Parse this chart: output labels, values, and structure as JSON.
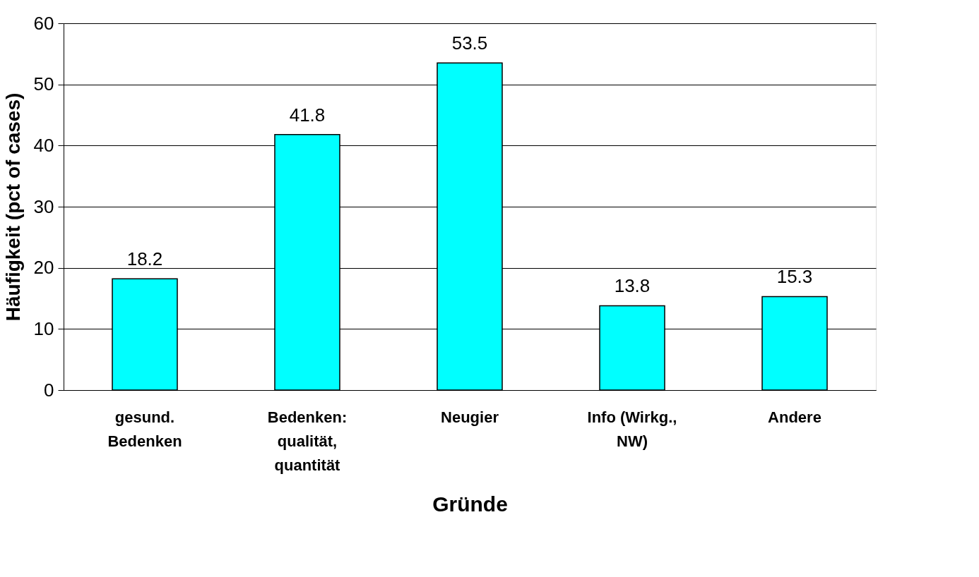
{
  "chart_data": {
    "type": "bar",
    "categories": [
      "gesund.\nBedenken",
      "Bedenken:\nqualität,\nquantität",
      "Neugier",
      "Info (Wirkg.,\nNW)",
      "Andere"
    ],
    "values": [
      18.2,
      41.8,
      53.5,
      13.8,
      15.3
    ],
    "color": "#00ffff",
    "xlabel": "Gründe",
    "ylabel": "Häufigkeit (pct of cases)",
    "ylim": [
      0,
      60
    ],
    "yticks": [
      0,
      10,
      20,
      30,
      40,
      50,
      60
    ],
    "grid": "y",
    "data_labels": true
  }
}
